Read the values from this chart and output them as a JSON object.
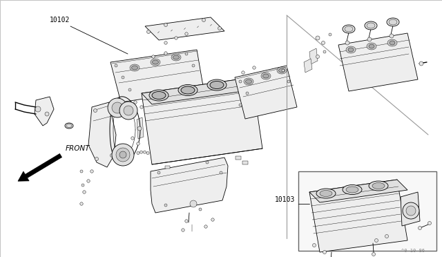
{
  "bg_color": "#ffffff",
  "border_color": "#aaaaaa",
  "line_color": "#000000",
  "fill_color": "#ffffff",
  "label_10102": "10102",
  "label_10103": "10103",
  "label_front": "FRONT",
  "watermark": "^0 10 86",
  "fig_width": 6.4,
  "fig_height": 3.72,
  "dpi": 100,
  "lw_main": 0.6,
  "lw_thin": 0.3,
  "lw_thick": 1.2,
  "part_gray": "#f0f0f0",
  "shadow_gray": "#d8d8d8",
  "diag_line_color": "#888888"
}
